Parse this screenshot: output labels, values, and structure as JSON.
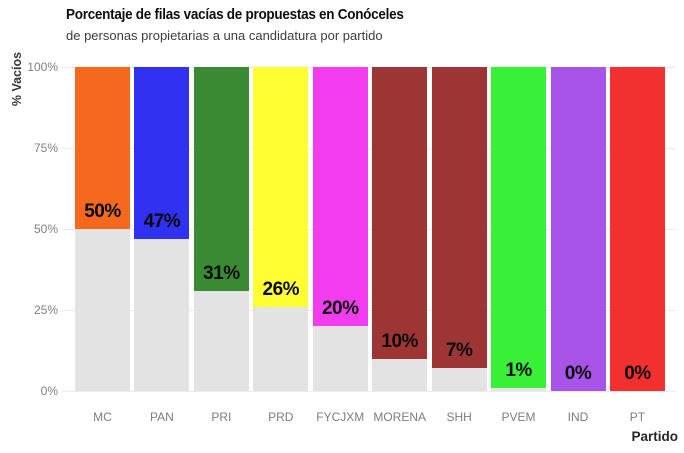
{
  "chart_data": {
    "type": "bar",
    "title": "Porcentaje de filas vacías de propuestas en Conóceles",
    "subtitle": "de personas propietarias a una candidatura por partido",
    "ylabel": "% Vacíos",
    "xlabel": "Partido",
    "ylim": [
      0,
      100
    ],
    "grid": "horizontal",
    "legend": "none",
    "yticks": [
      {
        "label": "0%",
        "value": 0
      },
      {
        "label": "25%",
        "value": 25
      },
      {
        "label": "50%",
        "value": 50
      },
      {
        "label": "75%",
        "value": 75
      },
      {
        "label": "100%",
        "value": 100
      }
    ],
    "categories": [
      "MC",
      "PAN",
      "PRI",
      "PRD",
      "FYCJXM",
      "MORENA",
      "SHH",
      "PVEM",
      "IND",
      "PT"
    ],
    "values": [
      50,
      47,
      31,
      26,
      20,
      10,
      7,
      1,
      0,
      0
    ],
    "value_labels": [
      "50%",
      "47%",
      "31%",
      "26%",
      "20%",
      "10%",
      "7%",
      "1%",
      "0%",
      "0%"
    ],
    "bar_colors": [
      "#F5691E",
      "#3031F0",
      "#3A8A34",
      "#FEFE33",
      "#F13DEE",
      "#9E3535",
      "#9E3535",
      "#38F038",
      "#A854E8",
      "#F23030"
    ],
    "remainder_color": "#E3E3E3",
    "bar_structure_note": "each bar is full-height: gray segment from 0 to value, party color from value to 100, value label printed just above the boundary"
  },
  "colors": {
    "background": "#FFFFFF",
    "gridline": "#EBEBEB",
    "axis_text": "#7D7D7D",
    "tick_text": "#808080",
    "title_text": "#0E0E0E",
    "subtitle_text": "#3D3D3D",
    "value_label_text": "#0A0A0A"
  }
}
